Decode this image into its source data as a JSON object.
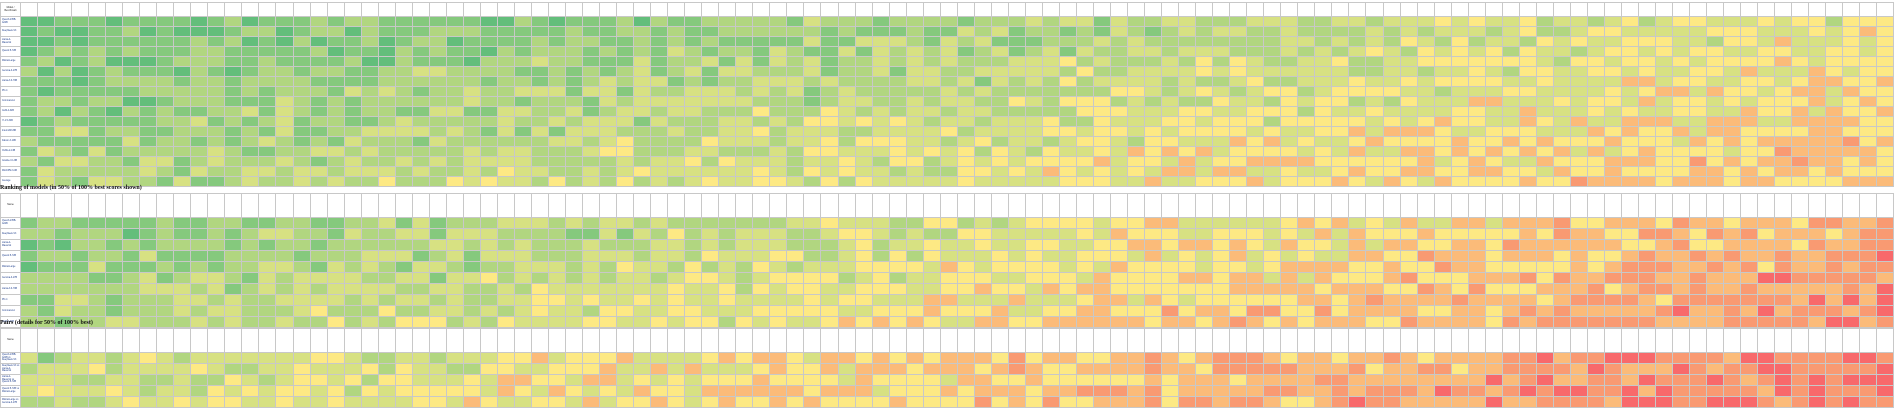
{
  "sections": [
    {
      "id": "scores",
      "heading": "",
      "corner_label": "Model / Benchmark",
      "meta_row_label": "Params (billions)",
      "rows": [
        "Qwen3-235B-A22B",
        "DeepSeek-V3",
        "Llama-4-Maverick",
        "Qwen2.5-72B",
        "Mistral-Large",
        "Gemma-3-27B",
        "Llama-3.3-70B",
        "Phi-4",
        "Command-A",
        "GLM-4-32B",
        "Yi-1.5-34B",
        "InternLM3-8B",
        "Falcon-3-10B",
        "OLMo-2-13B",
        "Granite-3.1-8B",
        "MiniCPM-3-4B",
        "Average"
      ],
      "tail_label": "Average"
    },
    {
      "id": "ranks",
      "heading": "Ranking of models (in 50% of 100% best scores shown)",
      "corner_label": "Name",
      "rows": [
        "Qwen3-235B-A22B",
        "DeepSeek-V3",
        "Llama-4-Maverick",
        "Qwen2.5-72B",
        "Mistral-Large",
        "Gemma-3-27B",
        "Llama-3.3-70B",
        "Phi-4",
        "Command-A",
        "GLM-4-32B"
      ]
    },
    {
      "id": "pairs",
      "heading": "Pairs (details for 50% of 100% best)",
      "corner_label": "Name",
      "rows": [
        "Qwen3-235B-A22B vs DeepSeek-V3",
        "DeepSeek-V3 vs Llama-4-Maverick",
        "Llama-4-Maverick vs Qwen2.5-72B",
        "Qwen2.5-72B vs Mistral-Large",
        "Mistral-Large vs Gemma-3-27B"
      ]
    }
  ],
  "palette": {
    "deep_green": "#63be7b",
    "green": "#85c97d",
    "light_green": "#b1d680",
    "yellow_green": "#d7e182",
    "yellow": "#fde984",
    "orange": "#fbbb79",
    "light_red": "#f99a72",
    "red": "#f8696b"
  }
}
